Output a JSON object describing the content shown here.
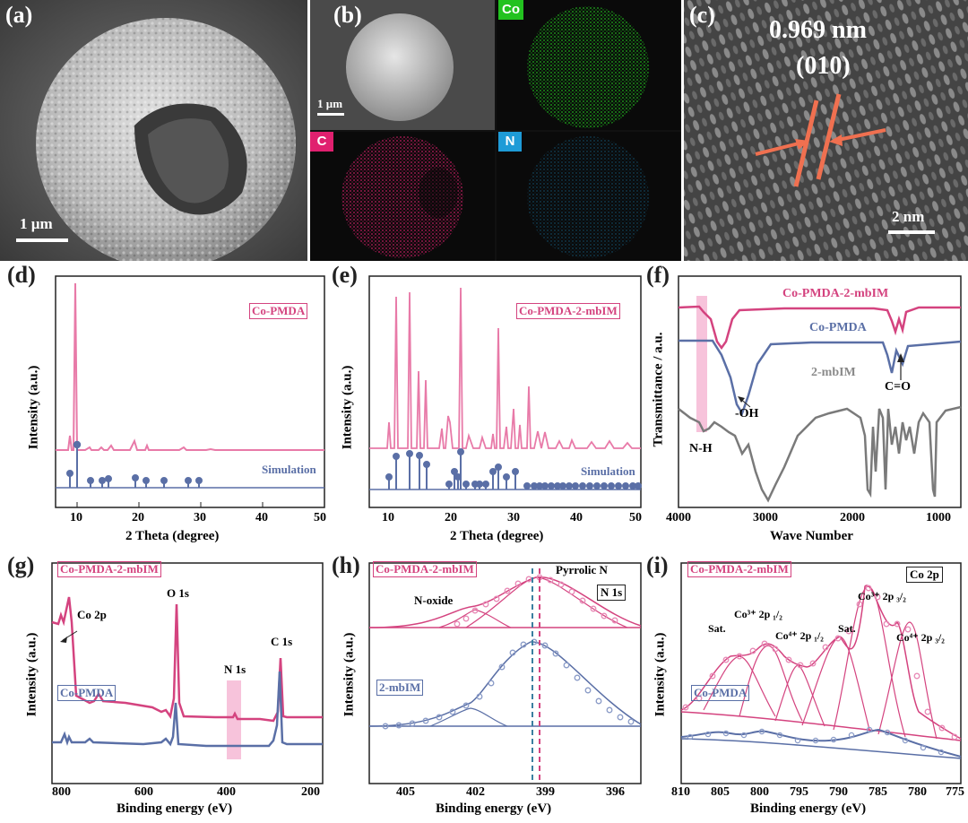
{
  "panels": {
    "a": {
      "label": "(a)",
      "scale": "1 µm"
    },
    "b": {
      "label": "(b)",
      "scale": "1 µm",
      "maps": [
        "Co",
        "C",
        "N"
      ]
    },
    "c": {
      "label": "(c)",
      "d_spacing": "0.969 nm",
      "plane": "(010)",
      "scale": "2 nm"
    },
    "d": {
      "label": "(d)",
      "legend": "Co-PMDA",
      "sim": "Simulation",
      "xlabel": "2 Theta (degree)",
      "ylabel": "Intensity (a.u.)",
      "xticks": [
        "10",
        "20",
        "30",
        "40",
        "50"
      ]
    },
    "e": {
      "label": "(e)",
      "legend": "Co-PMDA-2-mbIM",
      "sim": "Simulation",
      "xlabel": "2 Theta (degree)",
      "ylabel": "Intensity (a.u.)",
      "xticks": [
        "10",
        "20",
        "30",
        "40",
        "50"
      ]
    },
    "f": {
      "label": "(f)",
      "series": [
        "Co-PMDA-2-mbIM",
        "Co-PMDA",
        "2-mbIM"
      ],
      "annotations": [
        "-OH",
        "N-H",
        "C=O"
      ],
      "xlabel": "Wave Number",
      "ylabel": "Transmittance / a.u.",
      "xticks": [
        "4000",
        "3000",
        "2000",
        "1000"
      ]
    },
    "g": {
      "label": "(g)",
      "series": [
        "Co-PMDA-2-mbIM",
        "Co-PMDA"
      ],
      "annotations": [
        "Co 2p",
        "O 1s",
        "N 1s",
        "C 1s"
      ],
      "xlabel": "Binding energy (eV)",
      "ylabel": "Intensity (a.u.)",
      "xticks": [
        "800",
        "600",
        "400",
        "200"
      ]
    },
    "h": {
      "label": "(h)",
      "series": [
        "Co-PMDA-2-mbIM",
        "2-mbIM"
      ],
      "annotations": [
        "N-oxide",
        "Pyrrolic N",
        "N 1s"
      ],
      "xlabel": "Binding energy (eV)",
      "ylabel": "Intensity (a.u.)",
      "xticks": [
        "405",
        "402",
        "399",
        "396"
      ]
    },
    "i": {
      "label": "(i)",
      "series": [
        "Co-PMDA-2-mbIM",
        "Co-PMDA"
      ],
      "annotations": [
        "Sat.",
        "Co³⁺ 2p ₁/₂",
        "Co⁴⁺ 2p ₁/₂",
        "Sat.",
        "Co³⁺ 2p ₃/₂",
        "Co⁴⁺ 2p ₃/₂",
        "Co 2p"
      ],
      "xlabel": "Binding energy (eV)",
      "ylabel": "Intensity (a.u.)",
      "xticks": [
        "810",
        "805",
        "800",
        "795",
        "790",
        "785",
        "780",
        "775"
      ]
    }
  },
  "colors": {
    "pink": "#d4437f",
    "blue": "#5a6fa6",
    "gray": "#7a7a7a",
    "co_map": "#22c21f",
    "c_map": "#e0206f",
    "n_map": "#1e9bd7"
  }
}
